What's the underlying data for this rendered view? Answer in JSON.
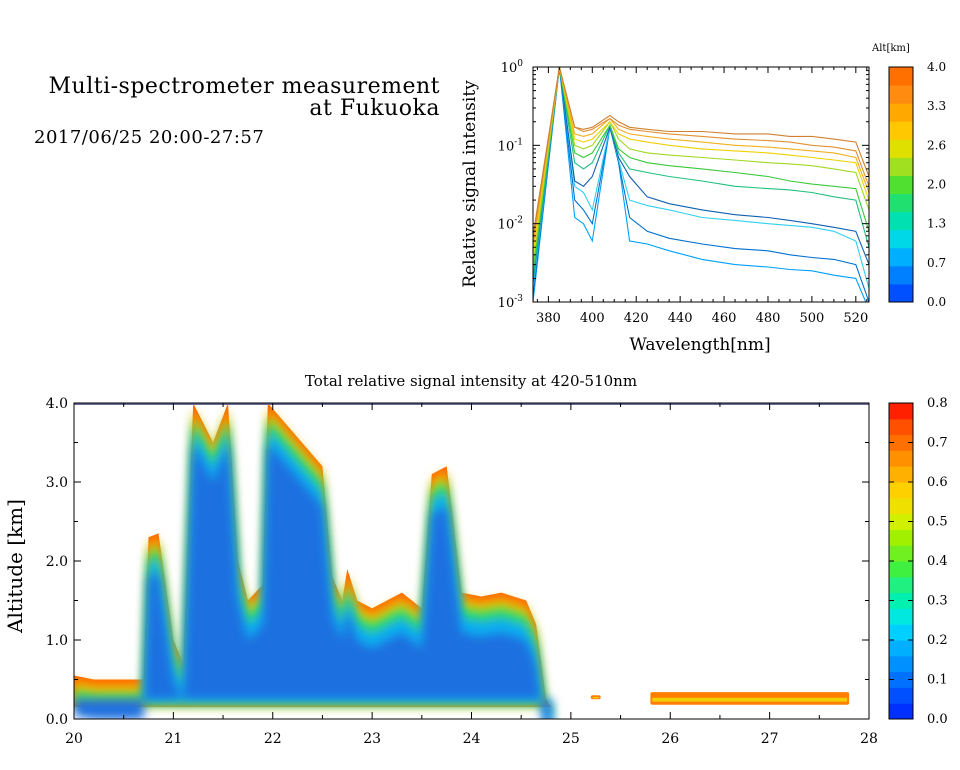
{
  "header": {
    "title_line1": "Multi-spectrometer measurement",
    "title_line2": "at Fukuoka",
    "dateline": "2017/06/25 20:00-27:57"
  },
  "chart_data": [
    {
      "type": "line",
      "xlabel": "Wavelength[nm]",
      "ylabel": "Relative signal intensity",
      "xlim": [
        373,
        526
      ],
      "ylim": [
        0.001,
        1
      ],
      "yscale": "log",
      "xticks": [
        380,
        400,
        420,
        440,
        460,
        480,
        500,
        520
      ],
      "yticks": [
        {
          "value": 0.001,
          "mantissa": "10",
          "exp": "-3"
        },
        {
          "value": 0.01,
          "mantissa": "10",
          "exp": "-2"
        },
        {
          "value": 0.1,
          "mantissa": "10",
          "exp": "-1"
        },
        {
          "value": 1,
          "mantissa": "10",
          "exp": "0"
        }
      ],
      "grid": false,
      "x": [
        373,
        385,
        392,
        396,
        400,
        408,
        412,
        417,
        425,
        435,
        450,
        465,
        480,
        490,
        500,
        510,
        520,
        526
      ],
      "series": [
        {
          "color": "#00a0ff",
          "values": [
            0.001,
            1,
            0.012,
            0.01,
            0.006,
            0.17,
            0.06,
            0.006,
            0.0055,
            0.0045,
            0.0035,
            0.003,
            0.0028,
            0.0026,
            0.0025,
            0.0022,
            0.002,
            0.0008
          ]
        },
        {
          "color": "#0070d0",
          "values": [
            0.0012,
            1,
            0.02,
            0.015,
            0.01,
            0.17,
            0.06,
            0.012,
            0.008,
            0.0065,
            0.0055,
            0.0048,
            0.0045,
            0.004,
            0.0037,
            0.0035,
            0.003,
            0.001
          ]
        },
        {
          "color": "#30d0f0",
          "values": [
            0.0015,
            1,
            0.03,
            0.025,
            0.015,
            0.17,
            0.065,
            0.02,
            0.017,
            0.015,
            0.012,
            0.011,
            0.01,
            0.0095,
            0.009,
            0.008,
            0.006,
            0.0015
          ]
        },
        {
          "color": "#1060b0",
          "values": [
            0.0018,
            1,
            0.035,
            0.03,
            0.04,
            0.17,
            0.07,
            0.04,
            0.022,
            0.018,
            0.015,
            0.013,
            0.012,
            0.011,
            0.01,
            0.009,
            0.008,
            0.003
          ]
        },
        {
          "color": "#20c080",
          "values": [
            0.002,
            1,
            0.06,
            0.05,
            0.06,
            0.18,
            0.08,
            0.05,
            0.045,
            0.04,
            0.035,
            0.03,
            0.028,
            0.027,
            0.025,
            0.022,
            0.02,
            0.005
          ]
        },
        {
          "color": "#3ac83a",
          "values": [
            0.0025,
            1,
            0.08,
            0.07,
            0.08,
            0.18,
            0.09,
            0.07,
            0.06,
            0.055,
            0.05,
            0.045,
            0.04,
            0.035,
            0.032,
            0.03,
            0.028,
            0.008
          ]
        },
        {
          "color": "#a0d820",
          "values": [
            0.003,
            1,
            0.1,
            0.09,
            0.1,
            0.2,
            0.12,
            0.09,
            0.08,
            0.075,
            0.07,
            0.065,
            0.06,
            0.058,
            0.055,
            0.05,
            0.045,
            0.015
          ]
        },
        {
          "color": "#f0d000",
          "values": [
            0.004,
            1,
            0.12,
            0.11,
            0.12,
            0.2,
            0.14,
            0.12,
            0.11,
            0.1,
            0.09,
            0.085,
            0.08,
            0.075,
            0.07,
            0.065,
            0.06,
            0.02
          ]
        },
        {
          "color": "#f0b020",
          "values": [
            0.005,
            1,
            0.14,
            0.13,
            0.14,
            0.22,
            0.16,
            0.14,
            0.13,
            0.12,
            0.11,
            0.1,
            0.095,
            0.09,
            0.085,
            0.08,
            0.07,
            0.025
          ]
        },
        {
          "color": "#e09030",
          "values": [
            0.006,
            1,
            0.17,
            0.15,
            0.16,
            0.22,
            0.18,
            0.16,
            0.15,
            0.14,
            0.13,
            0.12,
            0.115,
            0.11,
            0.1,
            0.095,
            0.085,
            0.03
          ]
        },
        {
          "color": "#d08030",
          "values": [
            0.007,
            1,
            0.17,
            0.16,
            0.17,
            0.24,
            0.2,
            0.17,
            0.16,
            0.15,
            0.15,
            0.14,
            0.14,
            0.13,
            0.13,
            0.12,
            0.11,
            0.04
          ]
        }
      ],
      "colorbar": {
        "label": "Alt[km]",
        "ticks": [
          "0.0",
          "0.7",
          "1.3",
          "2.0",
          "2.6",
          "3.3",
          "4.0"
        ],
        "colors": [
          "#0050ff",
          "#0080ff",
          "#00b0ff",
          "#00d8e8",
          "#00e0b0",
          "#20e070",
          "#50e030",
          "#a0e020",
          "#e0e000",
          "#ffc800",
          "#ffa800",
          "#ff8c10",
          "#ff7000"
        ]
      }
    },
    {
      "type": "heatmap",
      "title": "Total relative signal intensity at 420-510nm",
      "ylabel": "Altitude [km]",
      "xlim": [
        20,
        28
      ],
      "ylim": [
        0,
        4
      ],
      "xticks": [
        "20",
        "21",
        "22",
        "23",
        "24",
        "25",
        "26",
        "27",
        "28"
      ],
      "yticks": [
        "0.0",
        "1.0",
        "2.0",
        "3.0",
        "4.0"
      ],
      "grid": false,
      "cloud_base_km": [
        [
          20.0,
          0.15
        ],
        [
          21.0,
          0.15
        ],
        [
          22.0,
          0.15
        ],
        [
          23.0,
          0.15
        ],
        [
          24.0,
          0.15
        ],
        [
          24.8,
          0.15
        ]
      ],
      "cloud_top_km": [
        [
          20.0,
          0.55
        ],
        [
          20.2,
          0.5
        ],
        [
          20.7,
          0.5
        ],
        [
          20.75,
          2.3
        ],
        [
          20.85,
          2.35
        ],
        [
          21.0,
          1.0
        ],
        [
          21.1,
          0.7
        ],
        [
          21.2,
          4.0
        ],
        [
          21.4,
          3.5
        ],
        [
          21.55,
          4.0
        ],
        [
          21.65,
          2.0
        ],
        [
          21.75,
          1.5
        ],
        [
          21.9,
          1.7
        ],
        [
          21.95,
          4.0
        ],
        [
          22.5,
          3.2
        ],
        [
          22.6,
          1.8
        ],
        [
          22.7,
          1.5
        ],
        [
          22.75,
          1.9
        ],
        [
          22.85,
          1.5
        ],
        [
          23.0,
          1.4
        ],
        [
          23.3,
          1.6
        ],
        [
          23.5,
          1.4
        ],
        [
          23.6,
          3.1
        ],
        [
          23.75,
          3.2
        ],
        [
          23.9,
          1.6
        ],
        [
          24.1,
          1.55
        ],
        [
          24.3,
          1.6
        ],
        [
          24.55,
          1.5
        ],
        [
          24.65,
          1.2
        ],
        [
          24.75,
          0.25
        ],
        [
          24.8,
          0.15
        ]
      ],
      "thin_cloud_km": [
        {
          "x0": 25.2,
          "x1": 25.3,
          "y0": 0.25,
          "y1": 0.3
        },
        {
          "x0": 25.8,
          "x1": 27.8,
          "y0": 0.18,
          "y1": 0.34
        }
      ],
      "colorbar": {
        "ticks": [
          "0.0",
          "0.1",
          "0.2",
          "0.3",
          "0.4",
          "0.5",
          "0.6",
          "0.7",
          "0.8"
        ],
        "colors": [
          "#0030ff",
          "#0050ff",
          "#0070ff",
          "#0090ff",
          "#00b0ff",
          "#00d0ff",
          "#00e8e0",
          "#00f0b0",
          "#20f080",
          "#40f040",
          "#70f020",
          "#a0f000",
          "#d0f000",
          "#f0e000",
          "#ffd000",
          "#ffb000",
          "#ff9000",
          "#ff7000",
          "#ff5000",
          "#ff2000"
        ]
      }
    }
  ]
}
